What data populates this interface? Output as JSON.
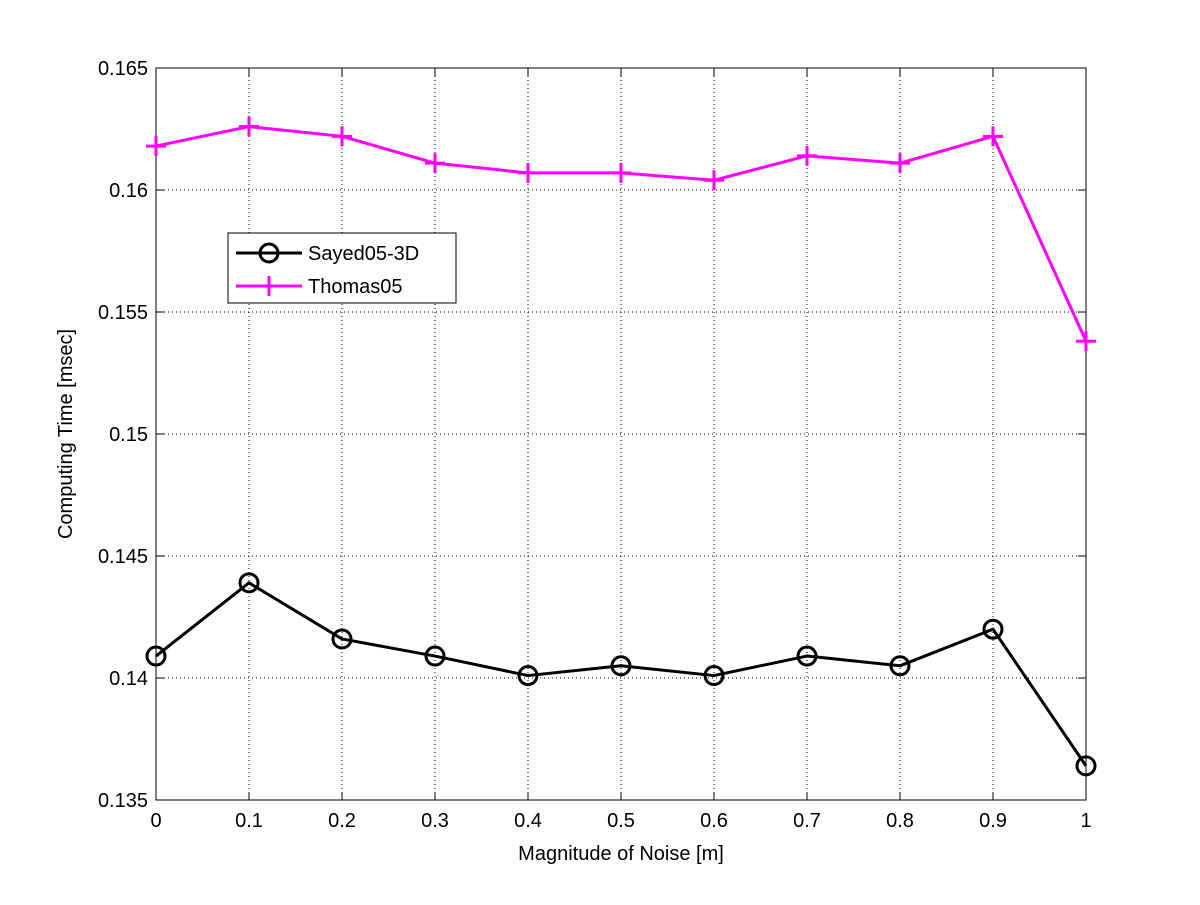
{
  "chart_data": {
    "type": "line",
    "title": "",
    "xlabel": "Magnitude of Noise [m]",
    "ylabel": "Computing Time [msec]",
    "xlim": [
      0,
      1
    ],
    "ylim": [
      0.135,
      0.165
    ],
    "x_ticks": [
      "0",
      "0.1",
      "0.2",
      "0.3",
      "0.4",
      "0.5",
      "0.6",
      "0.7",
      "0.8",
      "0.9",
      "1"
    ],
    "y_ticks": [
      "0.135",
      "0.14",
      "0.145",
      "0.15",
      "0.155",
      "0.16",
      "0.165"
    ],
    "grid": true,
    "legend_placement": "upper-left",
    "x": [
      0,
      0.1,
      0.2,
      0.3,
      0.4,
      0.5,
      0.6,
      0.7,
      0.8,
      0.9,
      1.0
    ],
    "series": [
      {
        "name": "Sayed05-3D",
        "color": "#000000",
        "marker": "circle",
        "values": [
          0.1409,
          0.1439,
          0.1416,
          0.1409,
          0.1401,
          0.1405,
          0.1401,
          0.1409,
          0.1405,
          0.142,
          0.1364
        ]
      },
      {
        "name": "Thomas05",
        "color": "#ff00ff",
        "marker": "plus",
        "values": [
          0.1618,
          0.1626,
          0.1622,
          0.1611,
          0.1607,
          0.1607,
          0.1604,
          0.1614,
          0.1611,
          0.1622,
          0.1538
        ]
      }
    ]
  }
}
